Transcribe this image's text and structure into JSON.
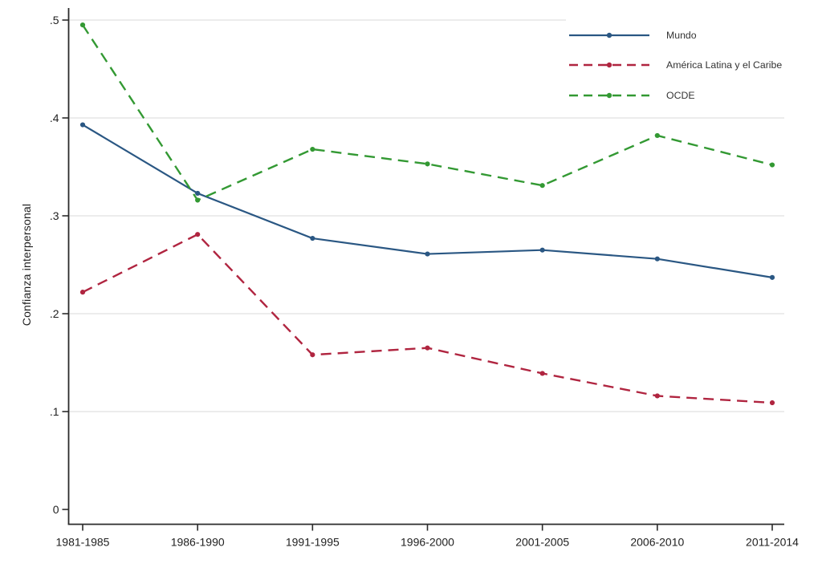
{
  "chart_data": {
    "type": "line",
    "title": "",
    "xlabel": "",
    "ylabel": "Confianza interpersonal",
    "categories": [
      "1981-1985",
      "1986-1990",
      "1991-1995",
      "1996-2000",
      "2001-2005",
      "2006-2010",
      "2011-2014"
    ],
    "series": [
      {
        "name": "Mundo",
        "color": "#2a5783",
        "style": "solid",
        "values": [
          0.393,
          0.323,
          0.277,
          0.261,
          0.265,
          0.256,
          0.237
        ]
      },
      {
        "name": "América Latina y el Caribe",
        "color": "#b02540",
        "style": "dashed",
        "values": [
          0.222,
          0.281,
          0.158,
          0.165,
          0.139,
          0.116,
          0.109
        ]
      },
      {
        "name": "OCDE",
        "color": "#339933",
        "style": "dashed",
        "values": [
          0.495,
          0.316,
          0.368,
          0.353,
          0.331,
          0.382,
          0.352
        ]
      }
    ],
    "y_ticks": [
      "0",
      ".1",
      ".2",
      ".3",
      ".4",
      ".5"
    ],
    "y_tick_values": [
      0,
      0.1,
      0.2,
      0.3,
      0.4,
      0.5
    ],
    "ylim": [
      0,
      0.5
    ],
    "grid": "horizontal",
    "legend_position": "top-right",
    "colors": {
      "axis": "#2b2b2b",
      "gridline": "#e1e1e1",
      "text": "#1f1f1f"
    }
  }
}
